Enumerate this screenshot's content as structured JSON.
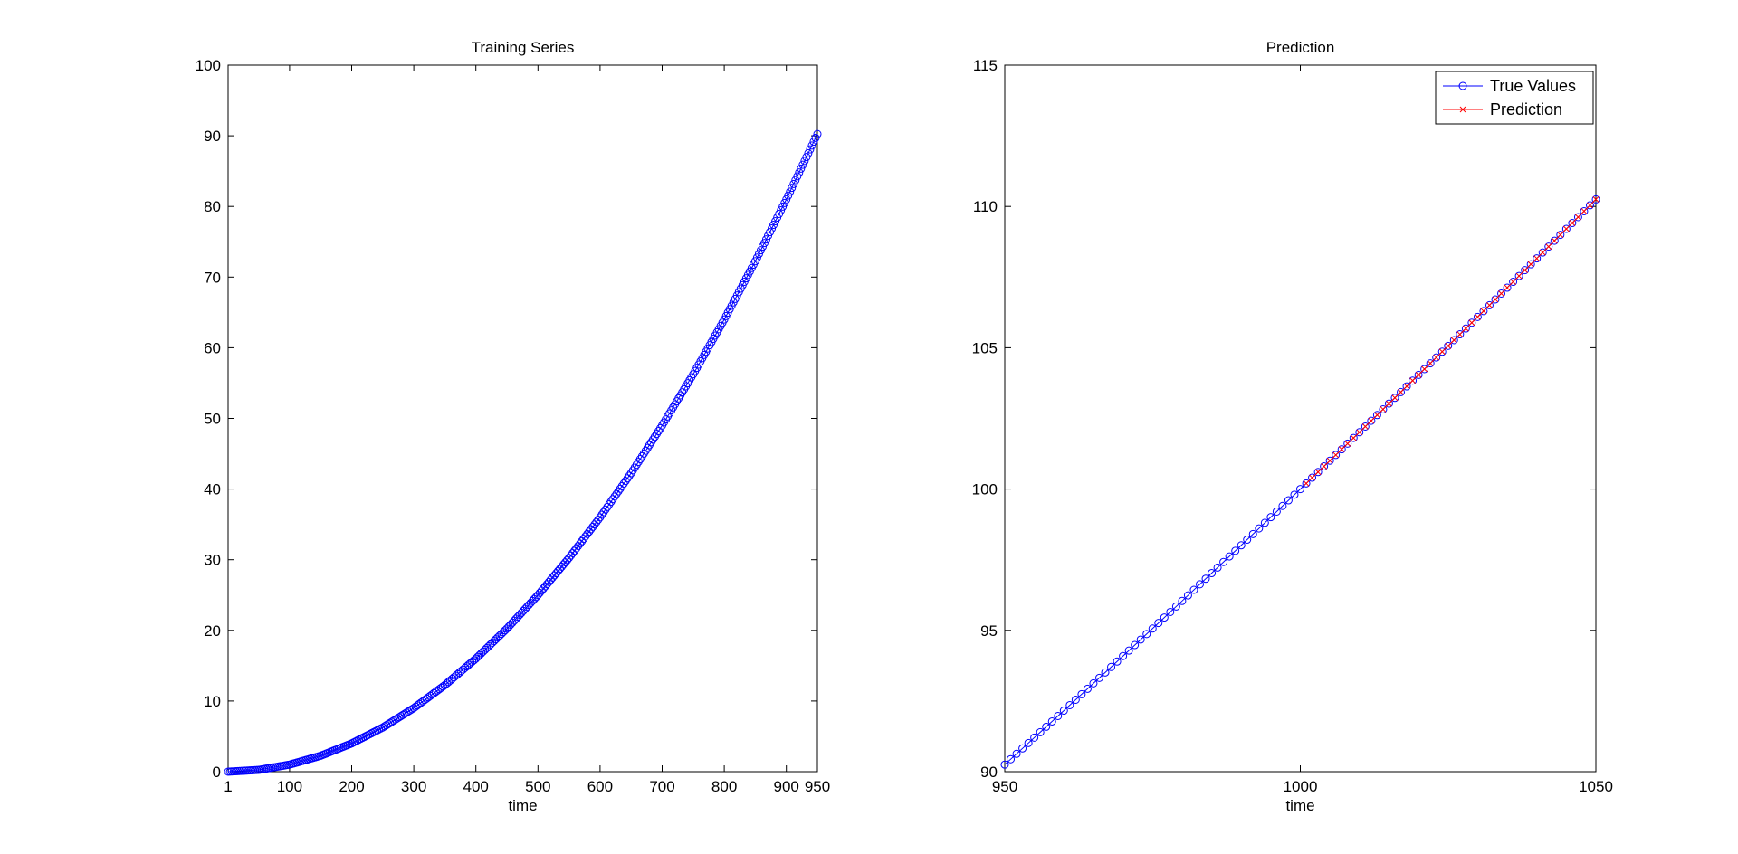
{
  "chart_data": [
    {
      "type": "line",
      "title": "Training Series",
      "xlabel": "time",
      "ylabel": "",
      "xlim": [
        1,
        950
      ],
      "ylim": [
        0,
        100
      ],
      "xticks": [
        1,
        100,
        200,
        300,
        400,
        500,
        600,
        700,
        800,
        900,
        950
      ],
      "yticks": [
        0,
        10,
        20,
        30,
        40,
        50,
        60,
        70,
        80,
        90,
        100
      ],
      "x_tick_labels": [
        "1",
        "100",
        "200",
        "300",
        "400",
        "500",
        "600",
        "700",
        "800",
        "900",
        "950"
      ],
      "y_tick_labels": [
        "0",
        "10",
        "20",
        "30",
        "40",
        "50",
        "60",
        "70",
        "80",
        "90",
        "100"
      ],
      "grid": false,
      "series": [
        {
          "color": "#0000ff",
          "marker": "circle",
          "x": [
            1,
            50,
            100,
            150,
            200,
            250,
            300,
            350,
            400,
            450,
            500,
            550,
            600,
            650,
            700,
            750,
            800,
            850,
            900,
            950
          ],
          "y": [
            0.0,
            0.25,
            1.0,
            2.25,
            4.0,
            6.25,
            9.0,
            12.25,
            16.0,
            20.25,
            25.0,
            30.25,
            36.0,
            42.25,
            49.0,
            56.25,
            64.0,
            72.25,
            81.0,
            90.25
          ]
        }
      ]
    },
    {
      "type": "line",
      "title": "Prediction",
      "xlabel": "time",
      "ylabel": "",
      "xlim": [
        950,
        1050
      ],
      "ylim": [
        90,
        115
      ],
      "xticks": [
        950,
        1000,
        1050
      ],
      "yticks": [
        90,
        95,
        100,
        105,
        110,
        115
      ],
      "x_tick_labels": [
        "950",
        "1000",
        "1050"
      ],
      "y_tick_labels": [
        "90",
        "95",
        "100",
        "105",
        "110",
        "115"
      ],
      "grid": false,
      "legend_position": "top-right",
      "series": [
        {
          "name": "True Values",
          "color": "#0000ff",
          "marker": "circle",
          "x": [
            950,
            960,
            970,
            980,
            990,
            1000,
            1010,
            1020,
            1030,
            1040,
            1050
          ],
          "y": [
            90.25,
            92.16,
            94.09,
            96.04,
            98.01,
            100.0,
            102.01,
            104.04,
            106.09,
            108.16,
            110.25
          ]
        },
        {
          "name": "Prediction",
          "color": "#ff0000",
          "marker": "x",
          "x": [
            1001,
            1010,
            1020,
            1030,
            1040,
            1050
          ],
          "y": [
            100.2,
            102.01,
            104.04,
            106.09,
            108.16,
            110.25
          ]
        }
      ]
    }
  ]
}
